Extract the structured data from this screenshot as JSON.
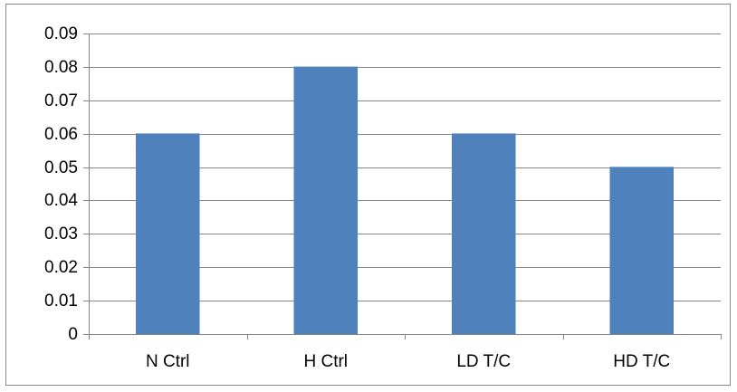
{
  "chart_data": {
    "type": "bar",
    "title": "",
    "xlabel": "",
    "ylabel": "",
    "categories": [
      "N Ctrl",
      "H Ctrl",
      "LD T/C",
      "HD T/C"
    ],
    "values": [
      0.06,
      0.08,
      0.06,
      0.05
    ],
    "ylim": [
      0,
      0.09
    ],
    "yticks": [
      0,
      0.01,
      0.02,
      0.03,
      0.04,
      0.05,
      0.06,
      0.07,
      0.08,
      0.09
    ],
    "ytick_labels": [
      "0",
      "0.01",
      "0.02",
      "0.03",
      "0.04",
      "0.05",
      "0.06",
      "0.07",
      "0.08",
      "0.09"
    ],
    "grid": true,
    "legend": "none",
    "colors": {
      "bar": "#4F81BD",
      "bar_edge": "#467CBB",
      "grid": "#878787",
      "axis": "#878787",
      "frame": "#878787",
      "text": "#000000"
    }
  }
}
